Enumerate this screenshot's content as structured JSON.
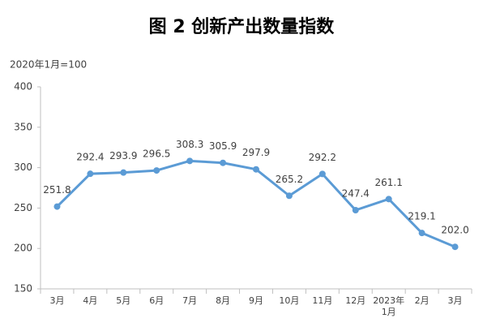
{
  "chart_data": {
    "type": "line",
    "title": "图 2  创新产出数量指数",
    "y_label": "2020年1月=100",
    "categories": [
      "3月",
      "4月",
      "5月",
      "6月",
      "7月",
      "8月",
      "9月",
      "10月",
      "11月",
      "12月",
      "2023年\n1月",
      "2月",
      "3月"
    ],
    "values": [
      251.8,
      292.4,
      293.9,
      296.5,
      308.3,
      305.9,
      297.9,
      265.2,
      292.2,
      247.4,
      261.1,
      219.1,
      202.0
    ],
    "value_labels": [
      "251.8",
      "292.4",
      "293.9",
      "296.5",
      "308.3",
      "305.9",
      "297.9",
      "265.2",
      "292.2",
      "247.4",
      "261.1",
      "219.1",
      "202.0"
    ],
    "color": "#5b9bd5",
    "ylim": [
      150,
      400
    ],
    "yticks": [
      150,
      200,
      250,
      300,
      350,
      400
    ],
    "grid": false
  }
}
